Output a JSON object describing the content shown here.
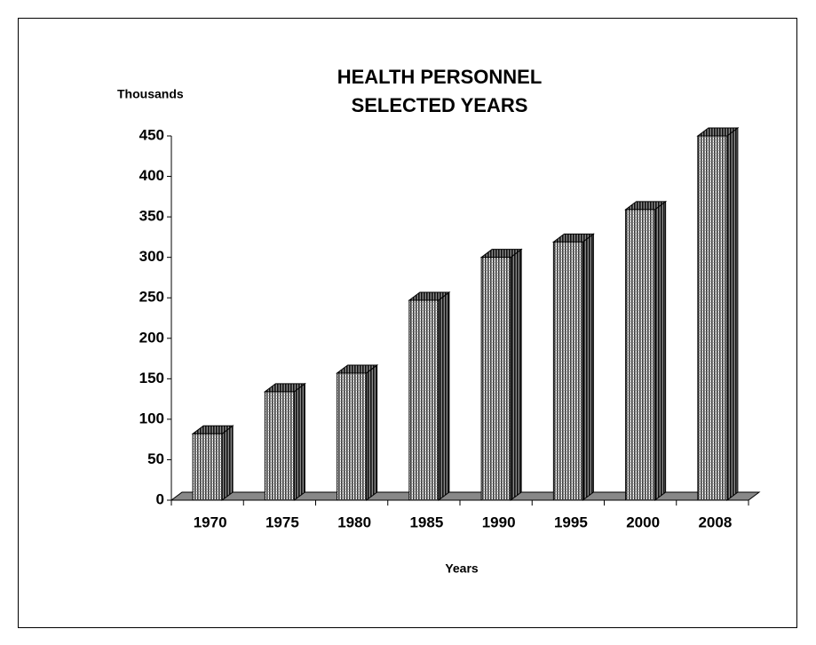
{
  "chart_data": {
    "type": "bar3d",
    "title": [
      "HEALTH PERSONNEL",
      "SELECTED YEARS"
    ],
    "y_label": "Thousands",
    "x_label": "Years",
    "categories": [
      "1970",
      "1975",
      "1980",
      "1985",
      "1990",
      "1995",
      "2000",
      "2008"
    ],
    "values": [
      82,
      134,
      157,
      247,
      300,
      319,
      359,
      450
    ],
    "color": "#b0b0b0",
    "ylim": [
      0,
      450
    ],
    "yticks": [
      0,
      50,
      100,
      150,
      200,
      250,
      300,
      350,
      400,
      450
    ]
  }
}
